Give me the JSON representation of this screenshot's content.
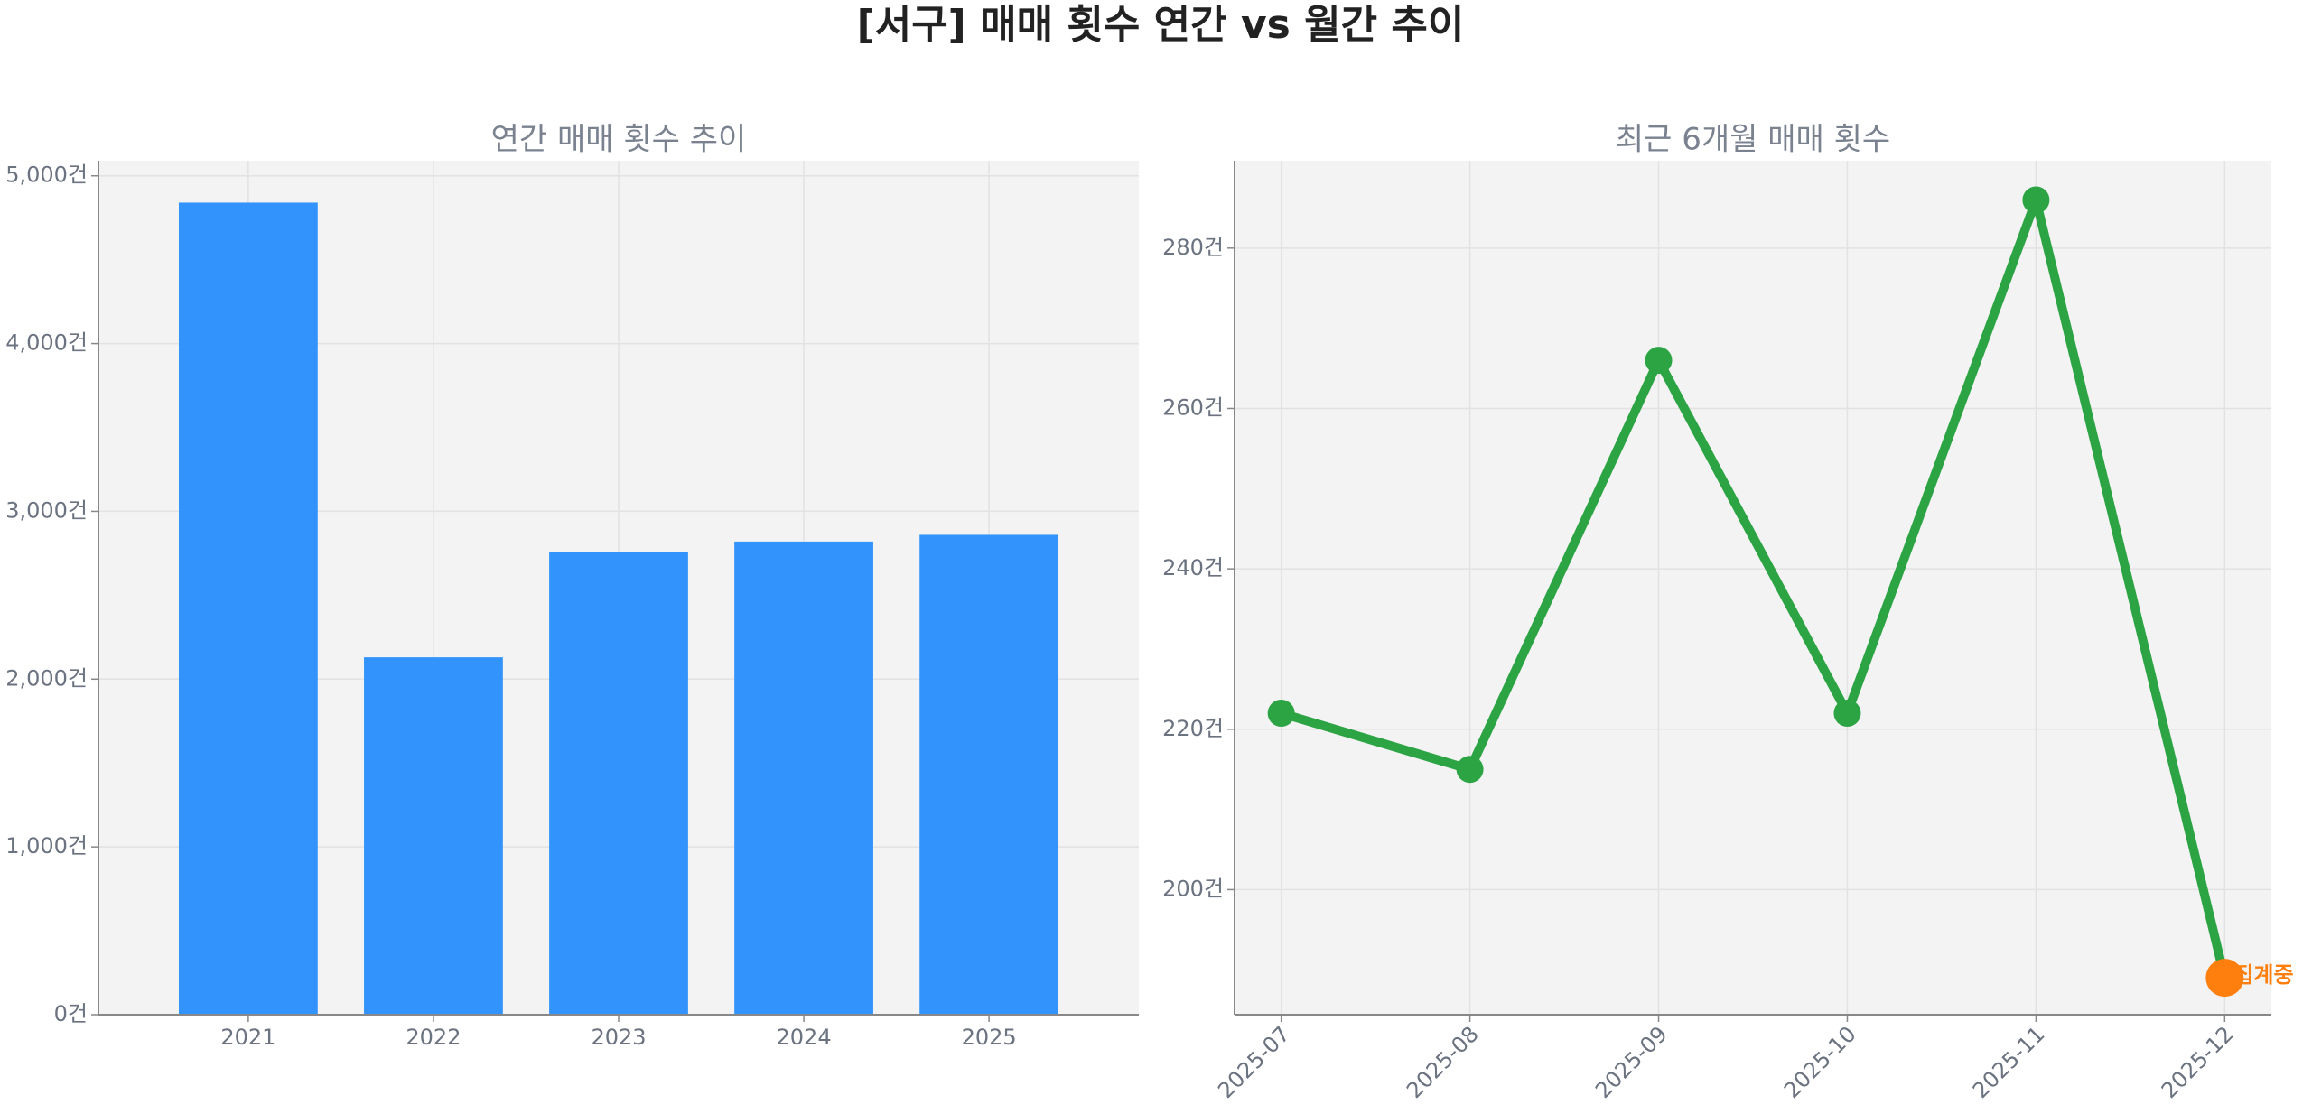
{
  "title": "[서구] 매매 횟수 연간 vs 월간 추이",
  "chart_data": [
    {
      "type": "bar",
      "title": "연간 매매 횟수 추이",
      "categories": [
        "2021",
        "2022",
        "2023",
        "2024",
        "2025"
      ],
      "values": [
        4840,
        2130,
        2760,
        2820,
        2860
      ],
      "color": "#3193fb",
      "ylim": [
        0,
        5090
      ],
      "yticks": [
        {
          "value": 0,
          "label": "0건"
        },
        {
          "value": 1000,
          "label": "1,000건"
        },
        {
          "value": 2000,
          "label": "2,000건"
        },
        {
          "value": 3000,
          "label": "3,000건"
        },
        {
          "value": 4000,
          "label": "4,000건"
        },
        {
          "value": 5000,
          "label": "5,000건"
        }
      ],
      "grid": true
    },
    {
      "type": "line",
      "title": "최근 6개월 매매 횟수",
      "categories": [
        "2025-07",
        "2025-08",
        "2025-09",
        "2025-10",
        "2025-11",
        "2025-12"
      ],
      "values": [
        222,
        215,
        266,
        222,
        286,
        189
      ],
      "color": "#2ca444",
      "last_point_color": "#ff7f0e",
      "annotation": {
        "text": "집계중",
        "color": "#ff7f0e"
      },
      "ylim": [
        184.4,
        290.9
      ],
      "yticks": [
        {
          "value": 200,
          "label": "200건"
        },
        {
          "value": 220,
          "label": "220건"
        },
        {
          "value": 240,
          "label": "240건"
        },
        {
          "value": 260,
          "label": "260건"
        },
        {
          "value": 280,
          "label": "280건"
        }
      ],
      "grid": true
    }
  ]
}
